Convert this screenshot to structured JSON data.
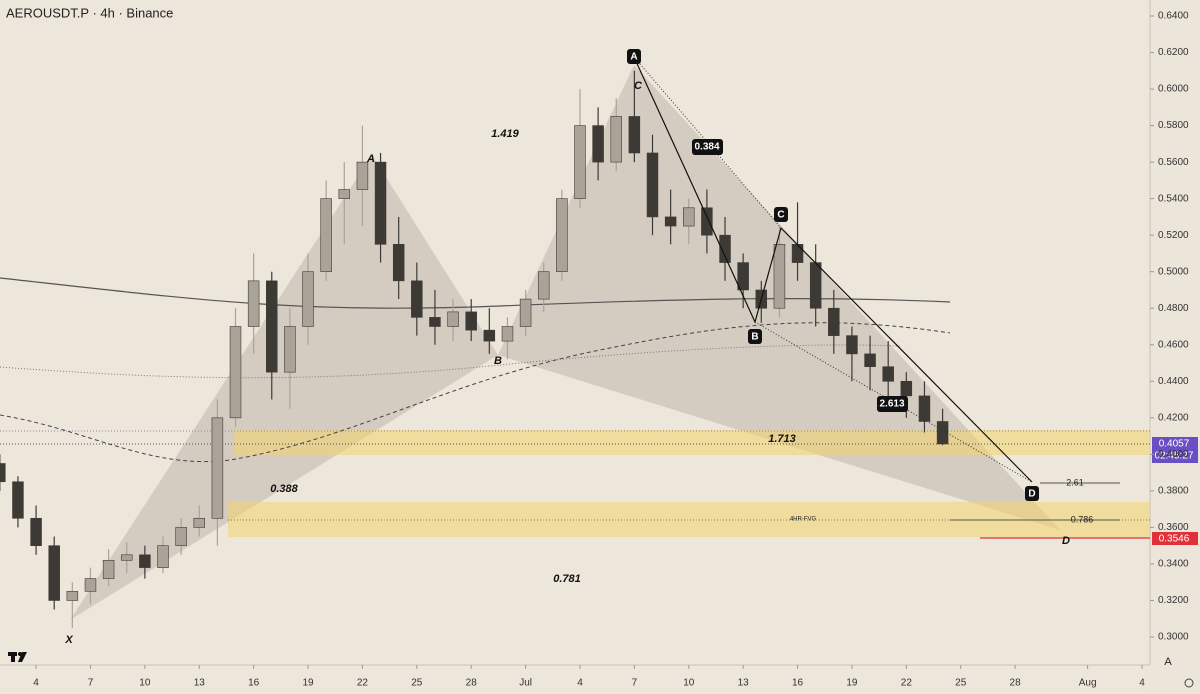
{
  "symbol": "AEROUSDT.P · 4h · Binance",
  "price_labels": [
    "0.4057",
    "02:45:27",
    "0.3546"
  ],
  "toolbar": [
    "A"
  ],
  "annotations": {
    "pattern1": [
      "X",
      "A",
      "B",
      "C",
      "D"
    ],
    "pattern2": [
      "A",
      "B",
      "C",
      "D"
    ],
    "ratios": [
      "1.419",
      "0.384",
      "2.613",
      "1.713",
      "0.388",
      "0.781"
    ],
    "levels": [
      "2.61",
      "0.786"
    ],
    "zone": "4HR-FVG"
  },
  "chart_data": {
    "type": "candlestick",
    "up_color": "#aaa397",
    "down_color": "#3d3a36",
    "x": [
      2,
      3,
      4,
      5,
      6,
      7,
      8,
      9,
      10,
      11,
      12,
      13,
      14,
      15,
      16,
      17,
      18,
      19,
      20,
      21,
      22,
      23,
      24,
      25,
      26,
      27,
      28,
      29,
      30,
      31,
      32,
      33,
      34,
      35,
      36,
      37,
      38,
      39,
      40,
      41,
      42,
      43,
      44,
      45,
      46,
      47,
      48,
      49,
      50,
      51,
      52,
      53,
      54
    ],
    "open": [
      0.395,
      0.385,
      0.365,
      0.35,
      0.32,
      0.325,
      0.332,
      0.342,
      0.345,
      0.338,
      0.35,
      0.36,
      0.365,
      0.42,
      0.47,
      0.495,
      0.445,
      0.47,
      0.5,
      0.54,
      0.545,
      0.56,
      0.515,
      0.495,
      0.475,
      0.47,
      0.478,
      0.468,
      0.462,
      0.47,
      0.485,
      0.5,
      0.54,
      0.58,
      0.56,
      0.585,
      0.565,
      0.53,
      0.525,
      0.535,
      0.52,
      0.505,
      0.49,
      0.48,
      0.515,
      0.505,
      0.48,
      0.465,
      0.455,
      0.448,
      0.44,
      0.432,
      0.418
    ],
    "high": [
      0.4,
      0.388,
      0.372,
      0.355,
      0.33,
      0.338,
      0.348,
      0.352,
      0.35,
      0.355,
      0.365,
      0.372,
      0.43,
      0.48,
      0.51,
      0.5,
      0.48,
      0.51,
      0.55,
      0.56,
      0.58,
      0.565,
      0.53,
      0.505,
      0.49,
      0.485,
      0.485,
      0.48,
      0.475,
      0.49,
      0.505,
      0.545,
      0.6,
      0.59,
      0.595,
      0.61,
      0.575,
      0.545,
      0.54,
      0.545,
      0.53,
      0.51,
      0.495,
      0.525,
      0.538,
      0.515,
      0.49,
      0.47,
      0.465,
      0.462,
      0.445,
      0.44,
      0.425
    ],
    "low": [
      0.38,
      0.36,
      0.345,
      0.315,
      0.305,
      0.318,
      0.328,
      0.335,
      0.332,
      0.335,
      0.345,
      0.355,
      0.35,
      0.415,
      0.455,
      0.43,
      0.425,
      0.46,
      0.495,
      0.515,
      0.525,
      0.505,
      0.485,
      0.465,
      0.46,
      0.462,
      0.462,
      0.455,
      0.452,
      0.465,
      0.478,
      0.495,
      0.535,
      0.55,
      0.555,
      0.56,
      0.52,
      0.515,
      0.515,
      0.51,
      0.495,
      0.48,
      0.472,
      0.475,
      0.495,
      0.47,
      0.455,
      0.44,
      0.435,
      0.43,
      0.42,
      0.412,
      0.405
    ],
    "close": [
      0.385,
      0.365,
      0.35,
      0.32,
      0.325,
      0.332,
      0.342,
      0.345,
      0.338,
      0.35,
      0.36,
      0.365,
      0.42,
      0.47,
      0.495,
      0.445,
      0.47,
      0.5,
      0.54,
      0.545,
      0.56,
      0.515,
      0.495,
      0.475,
      0.47,
      0.478,
      0.468,
      0.462,
      0.47,
      0.485,
      0.5,
      0.54,
      0.58,
      0.56,
      0.585,
      0.565,
      0.53,
      0.525,
      0.535,
      0.52,
      0.505,
      0.49,
      0.48,
      0.515,
      0.505,
      0.48,
      0.465,
      0.455,
      0.448,
      0.44,
      0.432,
      0.418,
      0.4057
    ],
    "xlim": [
      2.01,
      65.44
    ],
    "xticks": [
      4,
      7,
      10,
      13,
      16,
      19,
      22,
      25,
      28,
      {
        "value": 31,
        "label": "Jul"
      },
      {
        "value": 34,
        "label": "4"
      },
      {
        "value": 37,
        "label": "7"
      },
      {
        "value": 40,
        "label": "10"
      },
      {
        "value": 43,
        "label": "13"
      },
      {
        "value": 46,
        "label": "16"
      },
      {
        "value": 49,
        "label": "19"
      },
      {
        "value": 52,
        "label": "22"
      },
      {
        "value": 55,
        "label": "25"
      },
      {
        "value": 58,
        "label": "28"
      },
      {
        "value": 62,
        "label": "Aug"
      },
      {
        "value": 65,
        "label": "4"
      }
    ],
    "ylim": [
      0.3,
      0.64
    ],
    "yticks": [
      {
        "value": 0.3,
        "label": "0.3000"
      },
      {
        "value": 0.32,
        "label": "0.3200"
      },
      {
        "value": 0.34,
        "label": "0.3400"
      },
      {
        "value": 0.36,
        "label": "0.3600"
      },
      {
        "value": 0.38,
        "label": "0.3800"
      },
      {
        "value": 0.4,
        "label": "0.4000"
      },
      {
        "value": 0.42,
        "label": "0.4200"
      },
      {
        "value": 0.44,
        "label": "0.4400"
      },
      {
        "value": 0.46,
        "label": "0.4600"
      },
      {
        "value": 0.48,
        "label": "0.4800"
      },
      {
        "value": 0.5,
        "label": "0.5000"
      },
      {
        "value": 0.52,
        "label": "0.5200"
      },
      {
        "value": 0.54,
        "label": "0.5400"
      },
      {
        "value": 0.56,
        "label": "0.5600"
      },
      {
        "value": 0.58,
        "label": "0.5800"
      },
      {
        "value": 0.6,
        "label": "0.6000"
      },
      {
        "value": 0.62,
        "label": "0.6200"
      },
      {
        "value": 0.64,
        "label": "0.6400"
      }
    ]
  }
}
